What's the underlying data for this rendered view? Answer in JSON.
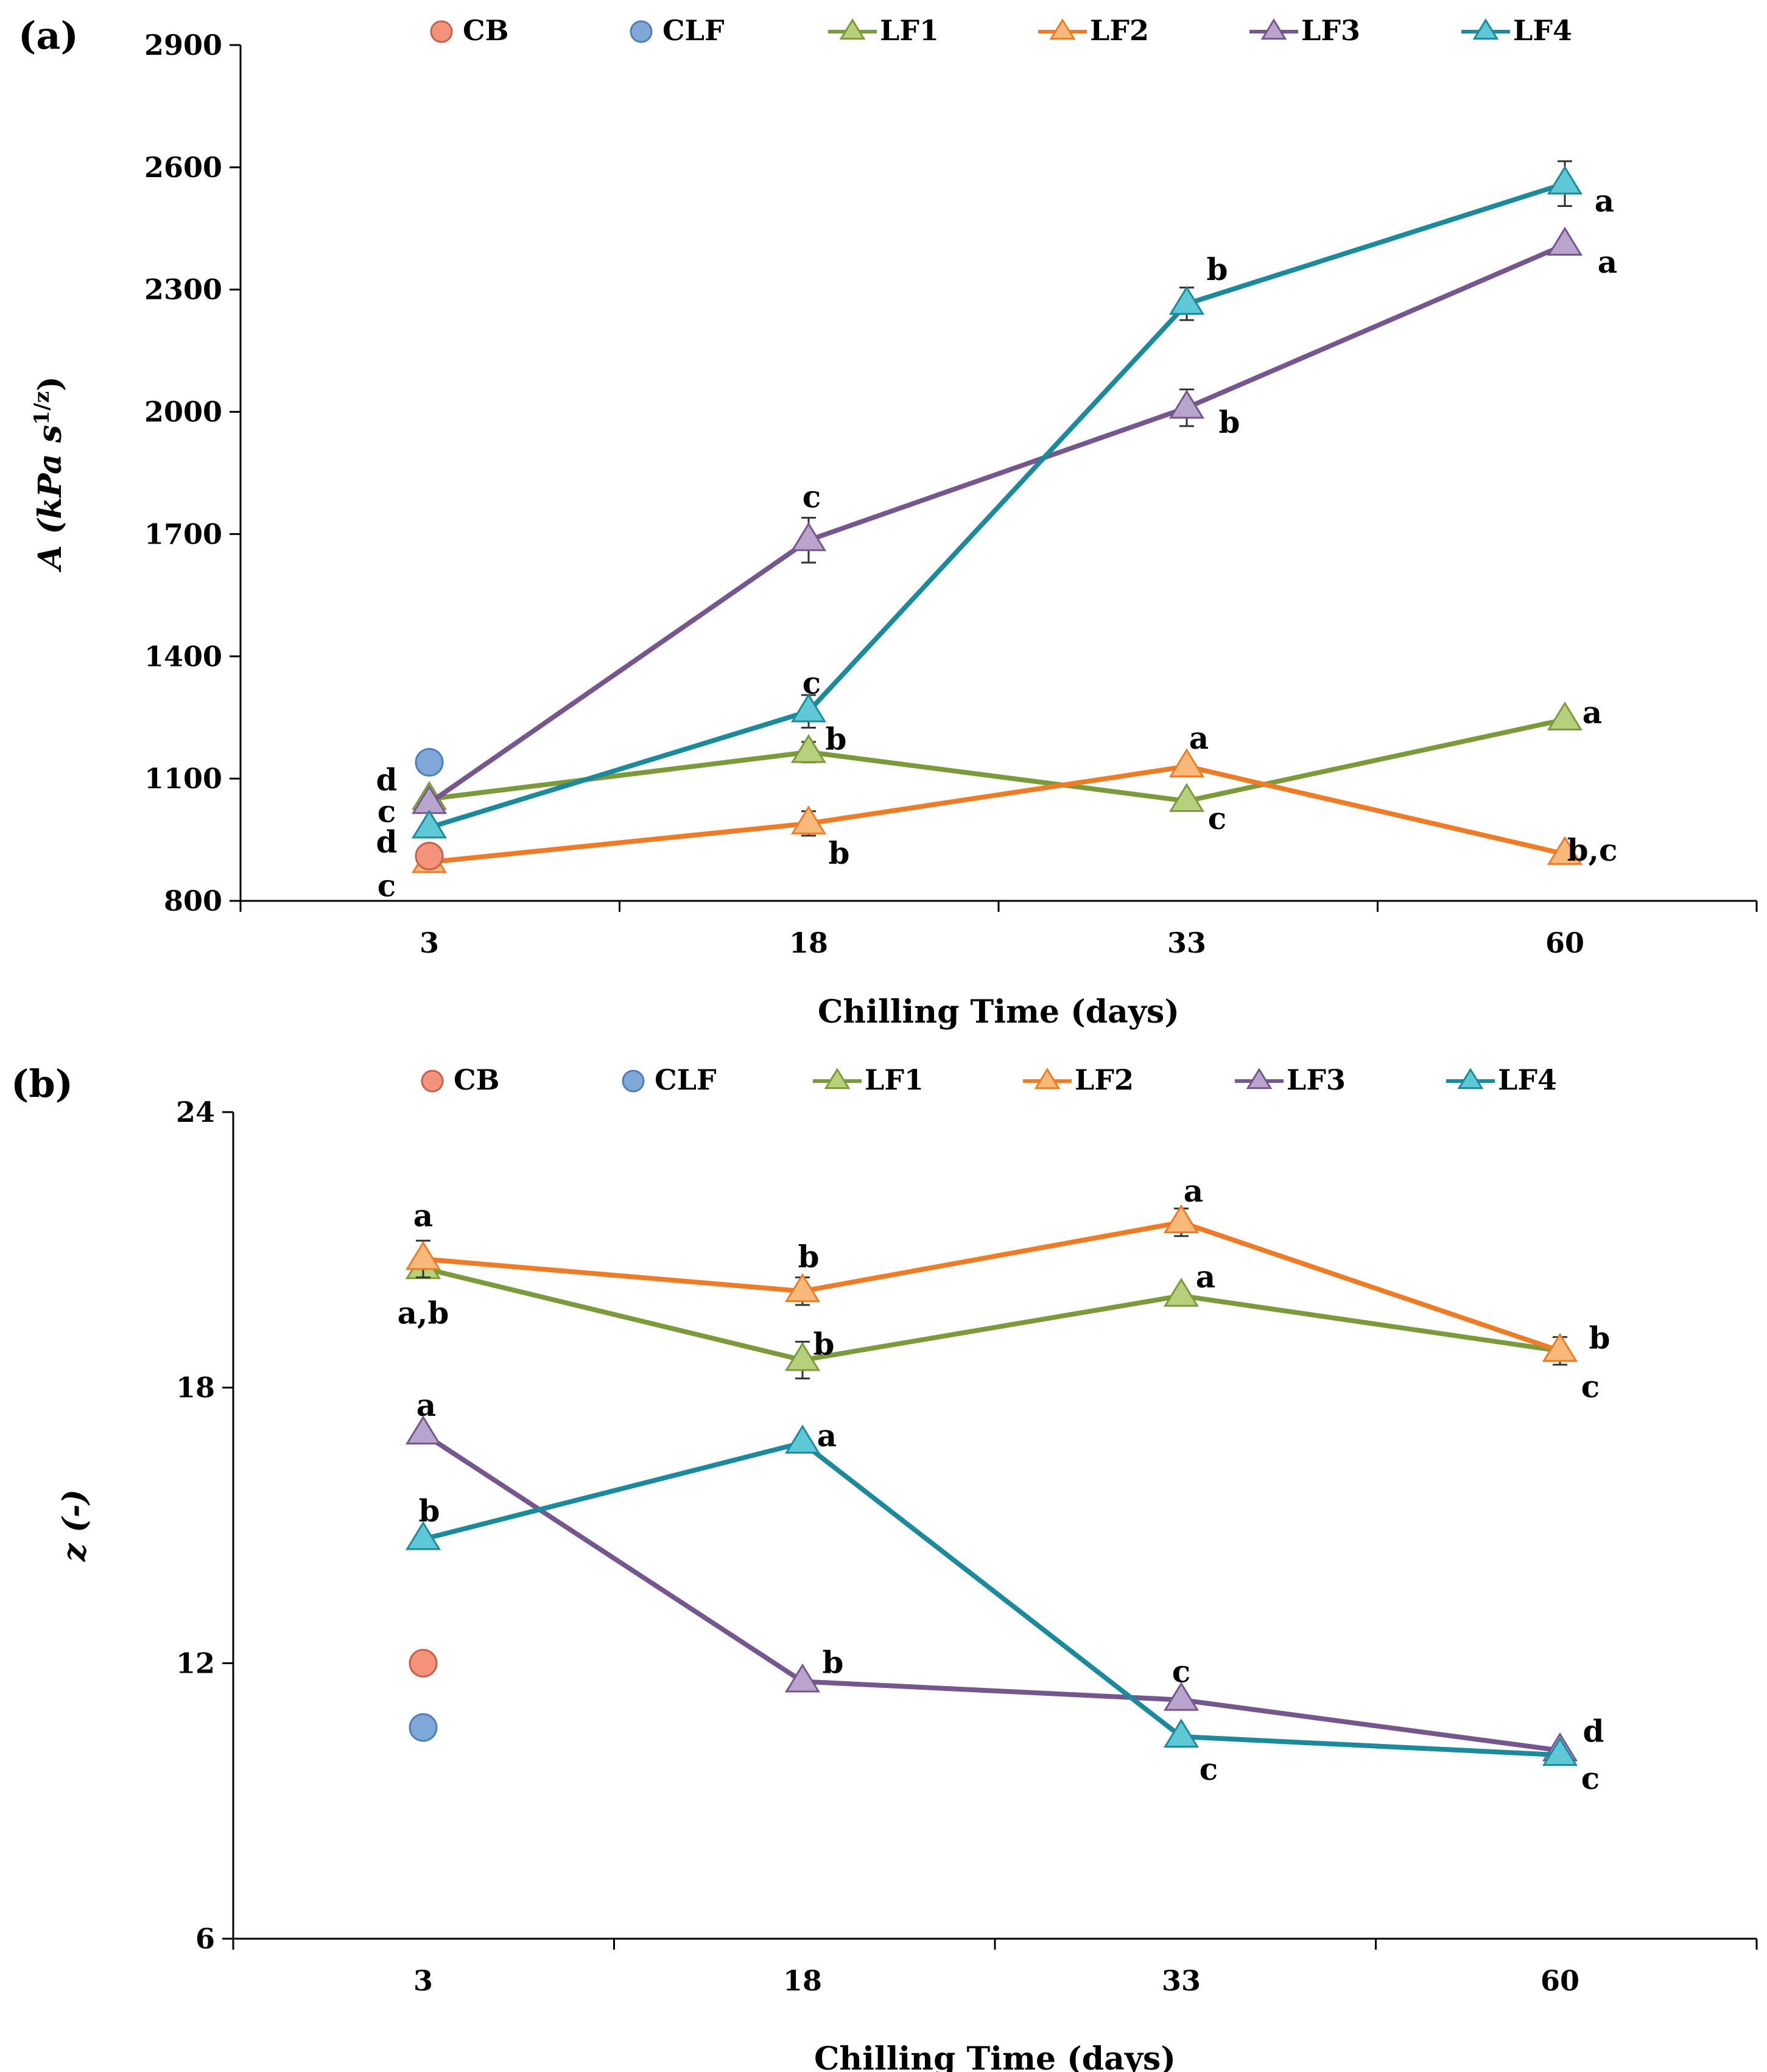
{
  "chart_data": [
    {
      "type": "line",
      "panel_label": "(a)",
      "xlabel": "Chilling Time (days)",
      "ylabel": "A (kPa s",
      "ylabel_sup": "1/z",
      "ylabel_close": ")",
      "categories": [
        "3",
        "18",
        "33",
        "60"
      ],
      "ylim": [
        800,
        2900
      ],
      "yticks": [
        "800",
        "1100",
        "1400",
        "1700",
        "2000",
        "2300",
        "2600",
        "2900"
      ],
      "legend": [
        "CB",
        "CLF",
        "LF1",
        "LF2",
        "LF3",
        "LF4"
      ],
      "points": [
        {
          "name": "CB",
          "x_index": 0,
          "value": 910,
          "color": "#f4927c",
          "stroke": "#c8604c"
        },
        {
          "name": "CLF",
          "x_index": 0,
          "value": 1140,
          "color": "#7fa8d8",
          "stroke": "#4f7fb8"
        }
      ],
      "series": [
        {
          "name": "LF1",
          "color": "#7b9a3a",
          "fill": "#b6d07c",
          "values": [
            1050,
            1165,
            1045,
            1245
          ],
          "errors": [
            0,
            25,
            0,
            0
          ],
          "labels": [
            "d",
            "b",
            "c",
            "a"
          ]
        },
        {
          "name": "LF2",
          "color": "#ef7b26",
          "fill": "#f9b97a",
          "values": [
            895,
            990,
            1130,
            915
          ],
          "errors": [
            0,
            30,
            0,
            0
          ],
          "labels": [
            "c",
            "b",
            "a",
            "b,c"
          ]
        },
        {
          "name": "LF3",
          "color": "#76568f",
          "fill": "#b8a4cc",
          "values": [
            1040,
            1685,
            2010,
            2410
          ],
          "errors": [
            0,
            55,
            45,
            0
          ],
          "labels": [
            "c",
            "c",
            "b",
            "a"
          ]
        },
        {
          "name": "LF4",
          "color": "#1a8a9c",
          "fill": "#5fc8d6",
          "values": [
            980,
            1265,
            2265,
            2560
          ],
          "errors": [
            0,
            40,
            40,
            55
          ],
          "labels": [
            "d",
            "c",
            "b",
            "a"
          ]
        }
      ]
    },
    {
      "type": "line",
      "panel_label": "(b)",
      "xlabel": "Chilling Time (days)",
      "ylabel": "z (-)",
      "categories": [
        "3",
        "18",
        "33",
        "60"
      ],
      "ylim": [
        6,
        24
      ],
      "yticks": [
        "6",
        "12",
        "18",
        "24"
      ],
      "legend": [
        "CB",
        "CLF",
        "LF1",
        "LF2",
        "LF3",
        "LF4"
      ],
      "points": [
        {
          "name": "CB",
          "x_index": 0,
          "value": 12.0,
          "color": "#f4927c",
          "stroke": "#c8604c"
        },
        {
          "name": "CLF",
          "x_index": 0,
          "value": 10.6,
          "color": "#7fa8d8",
          "stroke": "#4f7fb8"
        }
      ],
      "series": [
        {
          "name": "LF1",
          "color": "#7b9a3a",
          "fill": "#b6d07c",
          "values": [
            20.6,
            18.6,
            20.0,
            18.8
          ],
          "errors": [
            0,
            0.4,
            0,
            0.3
          ],
          "labels": [
            "a,b",
            "b",
            "a",
            "c"
          ]
        },
        {
          "name": "LF2",
          "color": "#ef7b26",
          "fill": "#f9b97a",
          "values": [
            20.8,
            20.1,
            21.6,
            18.8
          ],
          "errors": [
            0.4,
            0.3,
            0.3,
            0
          ],
          "labels": [
            "a",
            "b",
            "a",
            "b"
          ]
        },
        {
          "name": "LF3",
          "color": "#76568f",
          "fill": "#b8a4cc",
          "values": [
            17.0,
            11.6,
            11.2,
            10.1
          ],
          "errors": [
            0,
            0,
            0,
            0
          ],
          "labels": [
            "a",
            "b",
            "c",
            "d"
          ]
        },
        {
          "name": "LF4",
          "color": "#1a8a9c",
          "fill": "#5fc8d6",
          "values": [
            14.7,
            16.8,
            10.4,
            10.0
          ],
          "errors": [
            0,
            0,
            0,
            0
          ],
          "labels": [
            "b",
            "a",
            "c",
            "c"
          ]
        }
      ]
    }
  ]
}
